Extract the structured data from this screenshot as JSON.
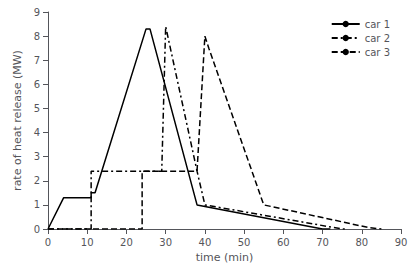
{
  "chart_data": {
    "type": "line",
    "xlabel": "time (min)",
    "ylabel": "rate of heat release (MW)",
    "xlim": [
      0,
      90
    ],
    "ylim": [
      0,
      9
    ],
    "xticks": [
      0,
      10,
      20,
      30,
      40,
      50,
      60,
      70,
      80,
      90
    ],
    "yticks": [
      0,
      1,
      2,
      3,
      4,
      5,
      6,
      7,
      8,
      9
    ],
    "grid": false,
    "legend": "upper right",
    "series": [
      {
        "name": "car 1",
        "color": "black",
        "line_style": "solid",
        "x": [
          0,
          4,
          11,
          11,
          12,
          25,
          26,
          38,
          38,
          70,
          72
        ],
        "values": [
          0,
          1.3,
          1.3,
          1.5,
          1.5,
          8.3,
          8.3,
          1.0,
          1.0,
          0.0,
          0.0
        ]
      },
      {
        "name": "car 2",
        "color": "black",
        "line_style": "dashdot",
        "x": [
          0,
          11,
          11,
          29,
          30,
          38,
          40,
          40,
          75,
          76
        ],
        "values": [
          0,
          0.0,
          2.4,
          2.4,
          8.4,
          2.4,
          1.0,
          1.0,
          0.0,
          0.0
        ]
      },
      {
        "name": "car 3",
        "color": "black",
        "line_style": "dashed",
        "x": [
          0,
          24,
          24,
          38,
          40,
          41,
          55,
          82,
          85
        ],
        "values": [
          0,
          0.0,
          2.4,
          2.4,
          8.0,
          7.5,
          1.0,
          0.05,
          0.0
        ]
      }
    ]
  }
}
